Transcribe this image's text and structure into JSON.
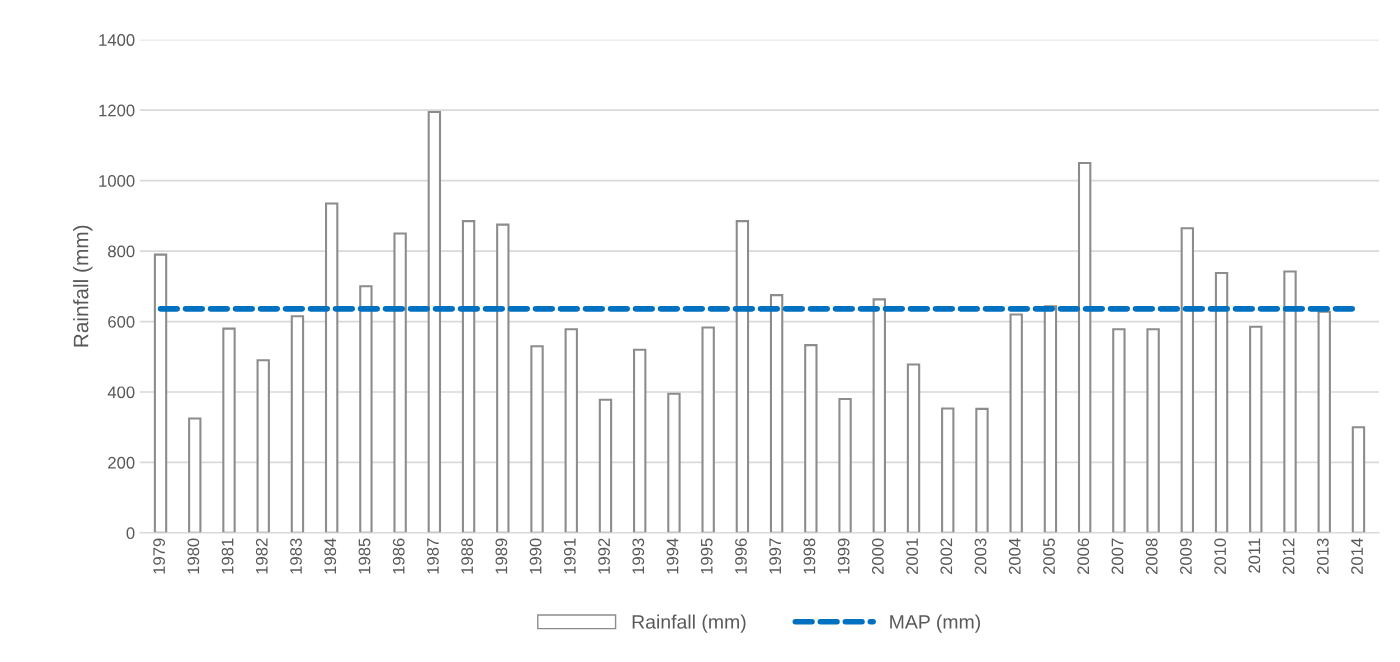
{
  "chart_data": {
    "type": "bar",
    "ylabel": "Rainfall (mm)",
    "categories": [
      "1979",
      "1980",
      "1981",
      "1982",
      "1983",
      "1984",
      "1985",
      "1986",
      "1987",
      "1988",
      "1989",
      "1990",
      "1991",
      "1992",
      "1993",
      "1994",
      "1995",
      "1996",
      "1997",
      "1998",
      "1999",
      "2000",
      "2001",
      "2002",
      "2003",
      "2004",
      "2005",
      "2006",
      "2007",
      "2008",
      "2009",
      "2010",
      "2011",
      "2012",
      "2013",
      "2014"
    ],
    "series": [
      {
        "name": "Rainfall (mm)",
        "color": "#ffffff",
        "values": [
          790,
          325,
          580,
          490,
          615,
          935,
          700,
          850,
          1195,
          885,
          875,
          530,
          578,
          378,
          520,
          395,
          583,
          885,
          675,
          533,
          380,
          663,
          478,
          353,
          352,
          620,
          643,
          1050,
          578,
          578,
          865,
          738,
          585,
          742,
          628,
          300
        ]
      },
      {
        "name": "MAP (mm)",
        "type": "line",
        "color": "#0070c0",
        "line_style": "dashed",
        "values": [
          636,
          636,
          636,
          636,
          636,
          636,
          636,
          636,
          636,
          636,
          636,
          636,
          636,
          636,
          636,
          636,
          636,
          636,
          636,
          636,
          636,
          636,
          636,
          636,
          636,
          636,
          636,
          636,
          636,
          636,
          636,
          636,
          636,
          636,
          636,
          636
        ]
      }
    ],
    "ylim": [
      0,
      1400
    ],
    "yticks": [
      0,
      200,
      400,
      600,
      800,
      1000,
      1200,
      1400
    ],
    "grid": "y",
    "legend": "bottom"
  }
}
